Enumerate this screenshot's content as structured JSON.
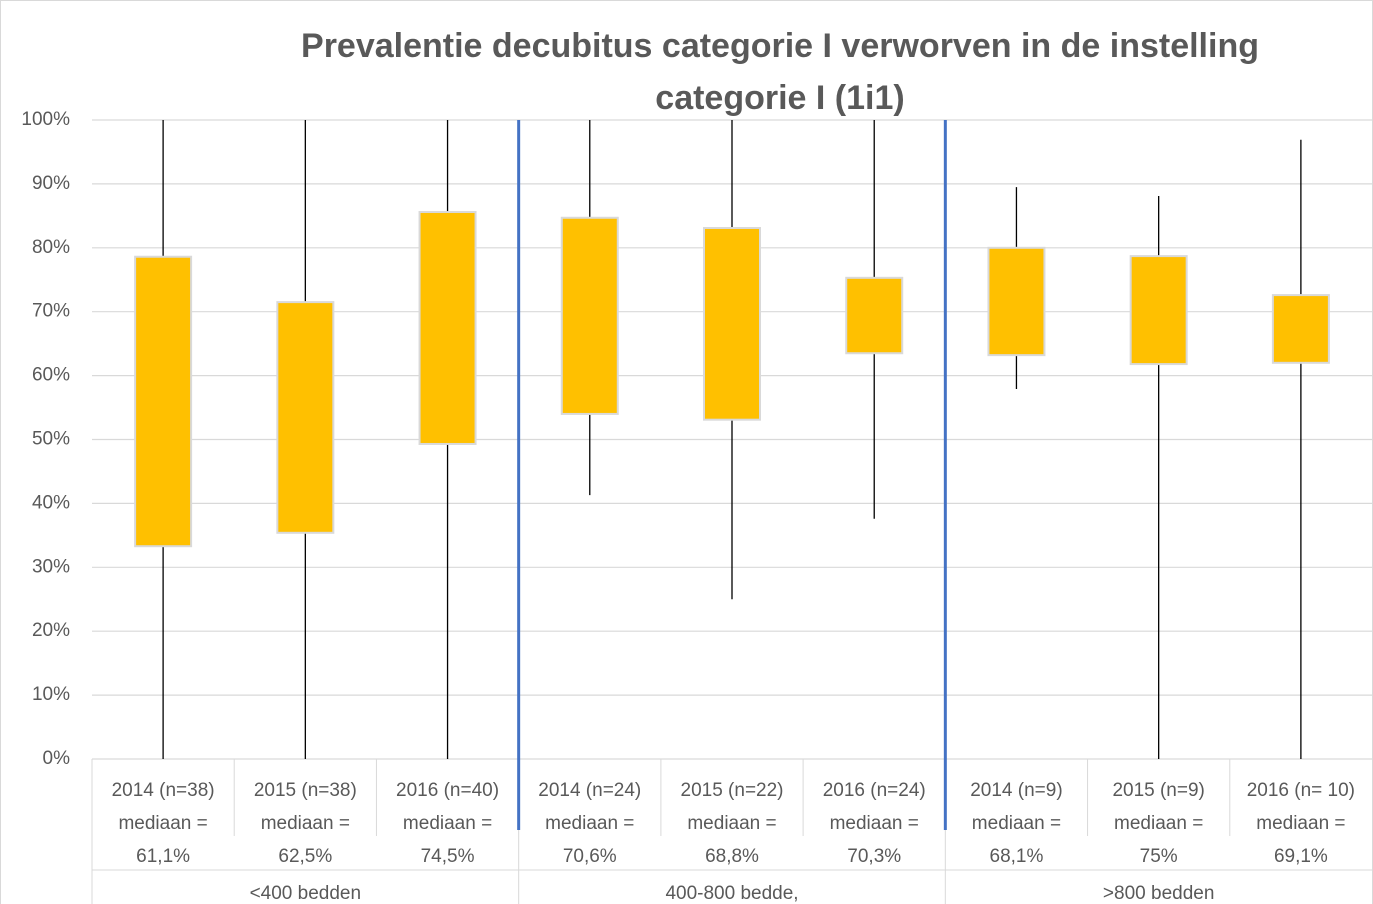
{
  "chart_data": {
    "type": "box",
    "title": [
      "Prevalentie decubitus categorie I verworven in de instelling",
      "categorie I (1i1)"
    ],
    "categories": [
      [
        "2014 (n=38)",
        "mediaan =",
        "61,1%"
      ],
      [
        "2015 (n=38)",
        "mediaan =",
        "62,5%"
      ],
      [
        "2016 (n=40)",
        "mediaan =",
        "74,5%"
      ],
      [
        "2014 (n=24)",
        "mediaan =",
        "70,6%"
      ],
      [
        "2015 (n=22)",
        "mediaan =",
        "68,8%"
      ],
      [
        "2016 (n=24)",
        "mediaan =",
        "70,3%"
      ],
      [
        "2014 (n=9)",
        "mediaan =",
        "68,1%"
      ],
      [
        "2015 (n=9)",
        "mediaan =",
        "75%"
      ],
      [
        "2016 (n= 10)",
        "mediaan =",
        "69,1%"
      ]
    ],
    "groups": [
      "<400 bedden",
      "400-800 bedde,",
      ">800 bedden"
    ],
    "min": [
      0,
      0,
      0,
      41.3,
      25,
      37.6,
      57.9,
      0,
      0
    ],
    "q1": [
      33.3,
      35.4,
      49.3,
      54,
      53.1,
      63.5,
      63.2,
      61.8,
      62
    ],
    "q3": [
      78.6,
      71.5,
      85.6,
      84.7,
      83.1,
      75.3,
      80,
      78.7,
      72.6
    ],
    "max": [
      100,
      100,
      100,
      100,
      100,
      100,
      89.5,
      88.1,
      96.9
    ],
    "color": "#ffc000",
    "ylim": [
      0,
      100
    ],
    "yticks": [
      {
        "value": 0,
        "label": "0%"
      },
      {
        "value": 10,
        "label": "10%"
      },
      {
        "value": 20,
        "label": "20%"
      },
      {
        "value": 30,
        "label": "30%"
      },
      {
        "value": 40,
        "label": "40%"
      },
      {
        "value": 50,
        "label": "50%"
      },
      {
        "value": 60,
        "label": "60%"
      },
      {
        "value": 70,
        "label": "70%"
      },
      {
        "value": 80,
        "label": "80%"
      },
      {
        "value": 90,
        "label": "90%"
      },
      {
        "value": 100,
        "label": "100%"
      }
    ],
    "grid": true
  }
}
